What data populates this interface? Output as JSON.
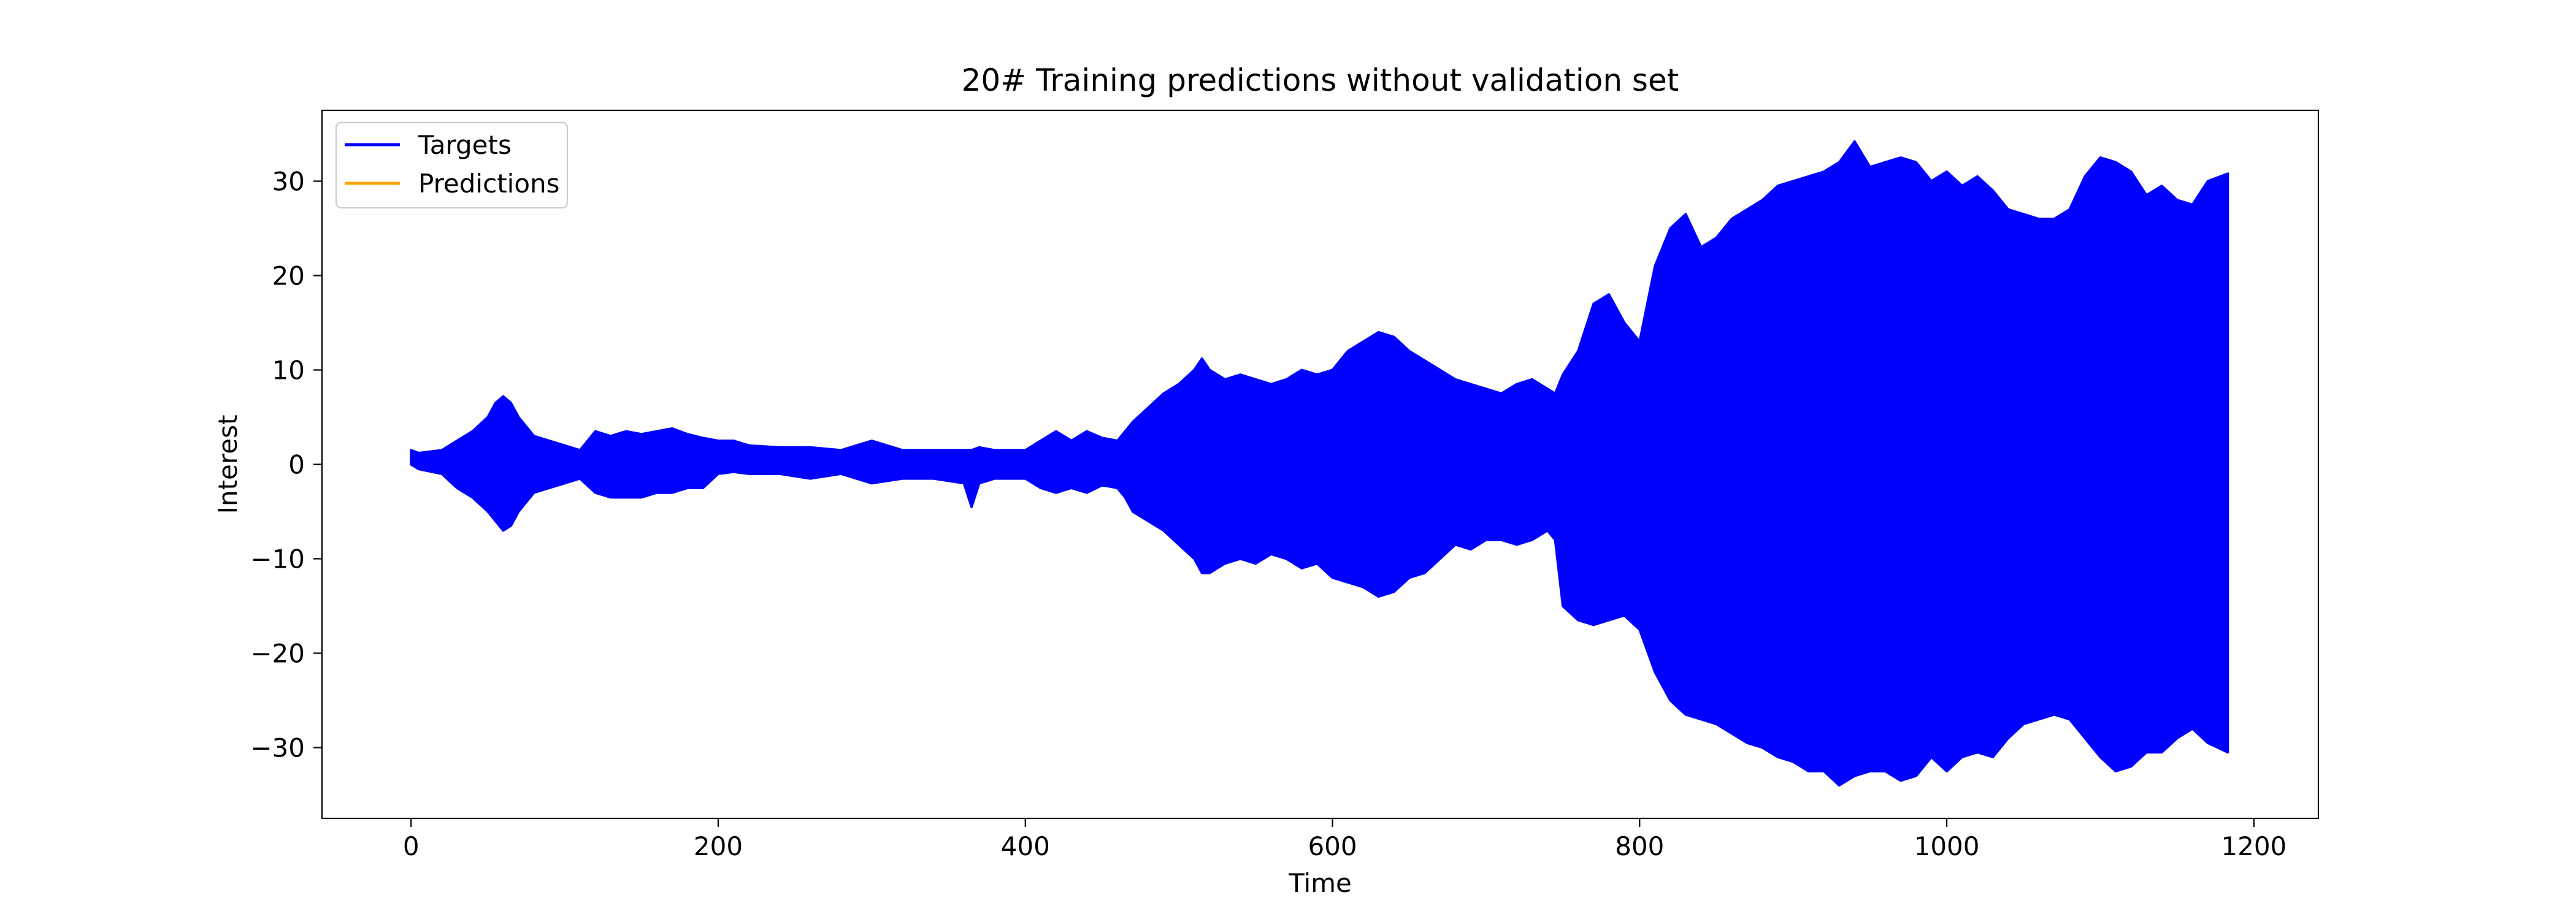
{
  "chart_data": {
    "type": "line",
    "title": "20# Training predictions without validation set",
    "xlabel": "Time",
    "ylabel": "Interest",
    "xlim": [
      -58,
      1242
    ],
    "ylim": [
      -37.5,
      37.5
    ],
    "x_ticks": [
      0,
      200,
      400,
      600,
      800,
      1000,
      1200
    ],
    "y_ticks": [
      -30,
      -20,
      -10,
      0,
      10,
      20,
      30
    ],
    "x_tick_labels": [
      "0",
      "200",
      "400",
      "600",
      "800",
      "1000",
      "1200"
    ],
    "y_tick_labels": [
      "−30",
      "−20",
      "−10",
      "0",
      "10",
      "20",
      "30"
    ],
    "grid": false,
    "legend_position": "upper left",
    "series": [
      {
        "name": "Targets",
        "color": "#0000ff",
        "envelope": {
          "x": [
            0,
            5,
            20,
            30,
            40,
            50,
            55,
            60,
            65,
            70,
            80,
            90,
            100,
            110,
            120,
            130,
            140,
            150,
            160,
            170,
            180,
            190,
            200,
            210,
            220,
            240,
            260,
            280,
            300,
            320,
            340,
            360,
            365,
            370,
            380,
            400,
            410,
            420,
            430,
            440,
            450,
            460,
            465,
            470,
            480,
            490,
            500,
            510,
            515,
            520,
            530,
            540,
            550,
            560,
            570,
            580,
            590,
            600,
            610,
            620,
            630,
            640,
            650,
            660,
            670,
            680,
            690,
            700,
            710,
            720,
            730,
            740,
            745,
            750,
            760,
            770,
            780,
            790,
            800,
            810,
            820,
            830,
            840,
            850,
            860,
            870,
            880,
            890,
            900,
            910,
            920,
            930,
            940,
            950,
            960,
            970,
            980,
            990,
            1000,
            1010,
            1020,
            1030,
            1040,
            1050,
            1060,
            1070,
            1080,
            1090,
            1100,
            1110,
            1120,
            1130,
            1140,
            1150,
            1160,
            1170,
            1183
          ],
          "upper": [
            1.5,
            1.2,
            1.5,
            2.5,
            3.5,
            5,
            6.5,
            7.2,
            6.5,
            5,
            3,
            2.5,
            2,
            1.5,
            3.5,
            3,
            3.5,
            3.2,
            3.5,
            3.8,
            3.2,
            2.8,
            2.5,
            2.5,
            2,
            1.8,
            1.8,
            1.5,
            2.5,
            1.5,
            1.5,
            1.5,
            1.5,
            1.8,
            1.5,
            1.5,
            2.5,
            3.5,
            2.5,
            3.5,
            2.8,
            2.5,
            3.5,
            4.5,
            6,
            7.5,
            8.5,
            10,
            11.2,
            10,
            9,
            9.5,
            9,
            8.5,
            9,
            10,
            9.5,
            10,
            12,
            13,
            14,
            13.5,
            12,
            11,
            10,
            9,
            8.5,
            8,
            7.5,
            8.5,
            9,
            8,
            7.5,
            9.5,
            12,
            17,
            18,
            15,
            13,
            21,
            25,
            26.5,
            23,
            24,
            26,
            27,
            28,
            29.5,
            30,
            30.5,
            31,
            32,
            34.2,
            31.5,
            32,
            32.5,
            32,
            30,
            31,
            29.5,
            30.5,
            29,
            27,
            26.5,
            26,
            26,
            27,
            30.5,
            32.5,
            32,
            31,
            28.5,
            29.5,
            28,
            27.5,
            30,
            30.8
          ],
          "lower": [
            0,
            -0.5,
            -1,
            -2.5,
            -3.5,
            -5,
            -6,
            -7,
            -6.5,
            -5,
            -3,
            -2.5,
            -2,
            -1.5,
            -3,
            -3.5,
            -3.5,
            -3.5,
            -3,
            -3,
            -2.5,
            -2.5,
            -1,
            -0.8,
            -1,
            -1,
            -1.5,
            -1,
            -2,
            -1.5,
            -1.5,
            -2,
            -4.5,
            -2,
            -1.5,
            -1.5,
            -2.5,
            -3,
            -2.5,
            -3,
            -2.2,
            -2.5,
            -3.5,
            -5,
            -6,
            -7,
            -8.5,
            -10,
            -11.5,
            -11.5,
            -10.5,
            -10,
            -10.5,
            -9.5,
            -10,
            -11,
            -10.5,
            -12,
            -12.5,
            -13,
            -14,
            -13.5,
            -12,
            -11.5,
            -10,
            -8.5,
            -9,
            -8,
            -8,
            -8.5,
            -8,
            -7,
            -8,
            -15,
            -16.5,
            -17,
            -16.5,
            -16,
            -17.5,
            -22,
            -25,
            -26.5,
            -27,
            -27.5,
            -28.5,
            -29.5,
            -30,
            -31,
            -31.5,
            -32.5,
            -32.5,
            -34,
            -33,
            -32.5,
            -32.5,
            -33.5,
            -33,
            -31,
            -32.5,
            -31,
            -30.5,
            -31,
            -29,
            -27.5,
            -27,
            -26.5,
            -27,
            -29,
            -31,
            -32.5,
            -32,
            -30.5,
            -30.5,
            -29,
            -28,
            -29.5,
            -30.5
          ]
        }
      },
      {
        "name": "Predictions",
        "color": "#ffa500",
        "values": []
      }
    ]
  }
}
